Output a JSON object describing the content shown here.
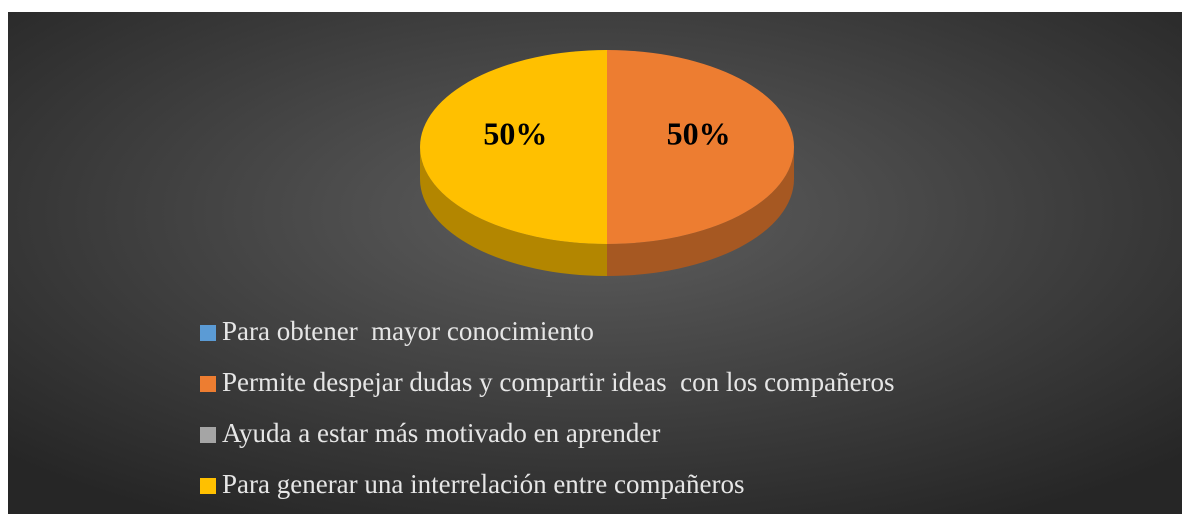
{
  "chart_data": {
    "type": "pie",
    "categories": [
      "Para obtener  mayor conocimiento",
      "Permite despejar dudas y compartir ideas  con los compañeros",
      "Ayuda a estar más motivado en aprender",
      "Para generar una interrelación entre compañeros"
    ],
    "values": [
      0,
      50,
      0,
      50
    ],
    "value_labels": [
      null,
      "50%",
      null,
      "50%"
    ],
    "colors": [
      "#5b9bd5",
      "#ed7d31",
      "#a5a5a5",
      "#ffc000"
    ],
    "legend": "bottom"
  }
}
